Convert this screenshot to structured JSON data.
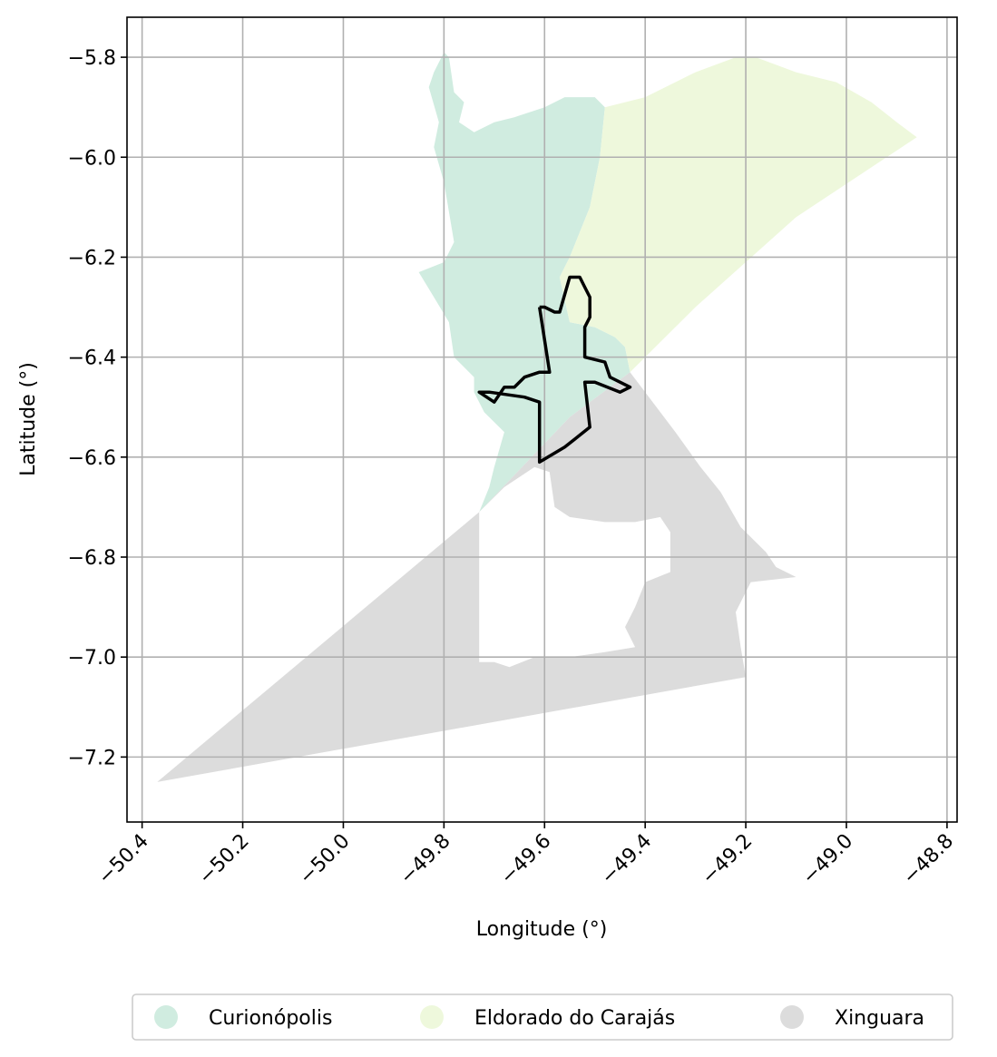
{
  "chart_data": {
    "type": "map",
    "xlabel": "Longitude (°)",
    "ylabel": "Latitude (°)",
    "xlim": [
      -50.43,
      -48.78
    ],
    "ylim": [
      -7.33,
      -5.72
    ],
    "xticks": [
      -50.4,
      -50.2,
      -50.0,
      -49.8,
      -49.6,
      -49.4,
      -49.2,
      -49.0,
      -48.8
    ],
    "xtick_labels": [
      "−50.4",
      "−50.2",
      "−50.0",
      "−49.8",
      "−49.6",
      "−49.4",
      "−49.2",
      "−49.0",
      "−48.8"
    ],
    "yticks": [
      -5.8,
      -6.0,
      -6.2,
      -6.4,
      -6.6,
      -6.8,
      -7.0,
      -7.2
    ],
    "ytick_labels": [
      "−5.8",
      "−6.0",
      "−6.2",
      "−6.4",
      "−6.6",
      "−6.8",
      "−7.0",
      "−7.2"
    ],
    "grid": true,
    "legend_position": "bottom-center",
    "regions": [
      {
        "name": "Curionópolis",
        "color": "#d0ece0",
        "coords": [
          [
            -49.82,
            -5.83
          ],
          [
            -49.8,
            -5.79
          ],
          [
            -49.79,
            -5.8
          ],
          [
            -49.78,
            -5.87
          ],
          [
            -49.76,
            -5.89
          ],
          [
            -49.77,
            -5.93
          ],
          [
            -49.74,
            -5.95
          ],
          [
            -49.7,
            -5.93
          ],
          [
            -49.66,
            -5.92
          ],
          [
            -49.63,
            -5.91
          ],
          [
            -49.6,
            -5.9
          ],
          [
            -49.56,
            -5.88
          ],
          [
            -49.5,
            -5.88
          ],
          [
            -49.48,
            -5.9
          ],
          [
            -49.49,
            -6.0
          ],
          [
            -49.51,
            -6.1
          ],
          [
            -49.55,
            -6.2
          ],
          [
            -49.57,
            -6.24
          ],
          [
            -49.55,
            -6.33
          ],
          [
            -49.5,
            -6.34
          ],
          [
            -49.46,
            -6.36
          ],
          [
            -49.44,
            -6.38
          ],
          [
            -49.43,
            -6.43
          ],
          [
            -49.55,
            -6.52
          ],
          [
            -49.73,
            -6.71
          ],
          [
            -49.71,
            -6.66
          ],
          [
            -49.7,
            -6.62
          ],
          [
            -49.68,
            -6.55
          ],
          [
            -49.72,
            -6.51
          ],
          [
            -49.74,
            -6.47
          ],
          [
            -49.74,
            -6.44
          ],
          [
            -49.78,
            -6.4
          ],
          [
            -49.79,
            -6.33
          ],
          [
            -49.82,
            -6.28
          ],
          [
            -49.85,
            -6.23
          ],
          [
            -49.8,
            -6.21
          ],
          [
            -49.78,
            -6.17
          ],
          [
            -49.8,
            -6.05
          ],
          [
            -49.82,
            -5.98
          ],
          [
            -49.81,
            -5.93
          ],
          [
            -49.83,
            -5.86
          ],
          [
            -49.82,
            -5.83
          ]
        ]
      },
      {
        "name": "Eldorado do Carajás",
        "color": "#eef8dc",
        "coords": [
          [
            -49.48,
            -5.9
          ],
          [
            -49.4,
            -5.88
          ],
          [
            -49.3,
            -5.83
          ],
          [
            -49.22,
            -5.8
          ],
          [
            -49.18,
            -5.8
          ],
          [
            -49.1,
            -5.83
          ],
          [
            -49.02,
            -5.85
          ],
          [
            -48.95,
            -5.89
          ],
          [
            -48.9,
            -5.93
          ],
          [
            -48.86,
            -5.96
          ],
          [
            -49.1,
            -6.12
          ],
          [
            -49.3,
            -6.3
          ],
          [
            -49.43,
            -6.43
          ],
          [
            -49.44,
            -6.38
          ],
          [
            -49.46,
            -6.36
          ],
          [
            -49.5,
            -6.34
          ],
          [
            -49.55,
            -6.33
          ],
          [
            -49.57,
            -6.24
          ],
          [
            -49.55,
            -6.2
          ],
          [
            -49.51,
            -6.1
          ],
          [
            -49.49,
            -6.0
          ],
          [
            -49.48,
            -5.9
          ]
        ]
      },
      {
        "name": "Xinguara",
        "color": "#dcdcdc",
        "coords": [
          [
            -49.43,
            -6.43
          ],
          [
            -49.55,
            -6.52
          ],
          [
            -49.73,
            -6.71
          ],
          [
            -50.37,
            -7.25
          ],
          [
            -49.2,
            -7.04
          ],
          [
            -49.21,
            -6.98
          ],
          [
            -49.22,
            -6.91
          ],
          [
            -49.19,
            -6.85
          ],
          [
            -49.1,
            -6.84
          ],
          [
            -49.14,
            -6.82
          ],
          [
            -49.16,
            -6.79
          ],
          [
            -49.21,
            -6.74
          ],
          [
            -49.25,
            -6.67
          ],
          [
            -49.29,
            -6.62
          ],
          [
            -49.34,
            -6.55
          ],
          [
            -49.43,
            -6.43
          ]
        ]
      },
      {
        "name": "Xinguara-hole",
        "color": "#ffffff",
        "coords": [
          [
            -49.73,
            -6.71
          ],
          [
            -49.68,
            -6.66
          ],
          [
            -49.62,
            -6.62
          ],
          [
            -49.59,
            -6.63
          ],
          [
            -49.58,
            -6.7
          ],
          [
            -49.55,
            -6.72
          ],
          [
            -49.48,
            -6.73
          ],
          [
            -49.42,
            -6.73
          ],
          [
            -49.37,
            -6.72
          ],
          [
            -49.35,
            -6.75
          ],
          [
            -49.35,
            -6.83
          ],
          [
            -49.4,
            -6.85
          ],
          [
            -49.42,
            -6.9
          ],
          [
            -49.44,
            -6.94
          ],
          [
            -49.42,
            -6.98
          ],
          [
            -49.48,
            -6.99
          ],
          [
            -49.55,
            -7.0
          ],
          [
            -49.62,
            -7.0
          ],
          [
            -49.67,
            -7.02
          ],
          [
            -49.7,
            -7.01
          ],
          [
            -49.73,
            -7.01
          ],
          [
            -49.73,
            -6.71
          ]
        ]
      }
    ],
    "outline": {
      "name": "boundary",
      "color": "#000000",
      "coords": [
        [
          -49.61,
          -6.3
        ],
        [
          -49.6,
          -6.3
        ],
        [
          -49.58,
          -6.31
        ],
        [
          -49.57,
          -6.31
        ],
        [
          -49.55,
          -6.24
        ],
        [
          -49.53,
          -6.24
        ],
        [
          -49.52,
          -6.26
        ],
        [
          -49.51,
          -6.28
        ],
        [
          -49.51,
          -6.32
        ],
        [
          -49.52,
          -6.34
        ],
        [
          -49.52,
          -6.4
        ],
        [
          -49.48,
          -6.41
        ],
        [
          -49.47,
          -6.44
        ],
        [
          -49.43,
          -6.46
        ],
        [
          -49.45,
          -6.47
        ],
        [
          -49.5,
          -6.45
        ],
        [
          -49.52,
          -6.45
        ],
        [
          -49.51,
          -6.54
        ],
        [
          -49.56,
          -6.58
        ],
        [
          -49.61,
          -6.61
        ],
        [
          -49.61,
          -6.49
        ],
        [
          -49.64,
          -6.48
        ],
        [
          -49.71,
          -6.47
        ],
        [
          -49.73,
          -6.47
        ],
        [
          -49.7,
          -6.49
        ],
        [
          -49.68,
          -6.46
        ],
        [
          -49.66,
          -6.46
        ],
        [
          -49.64,
          -6.44
        ],
        [
          -49.61,
          -6.43
        ],
        [
          -49.59,
          -6.43
        ],
        [
          -49.61,
          -6.3
        ]
      ]
    },
    "legend": [
      {
        "label": "Curionópolis",
        "color": "#d0ece0"
      },
      {
        "label": "Eldorado do Carajás",
        "color": "#eef8dc"
      },
      {
        "label": "Xinguara",
        "color": "#dcdcdc"
      }
    ]
  }
}
